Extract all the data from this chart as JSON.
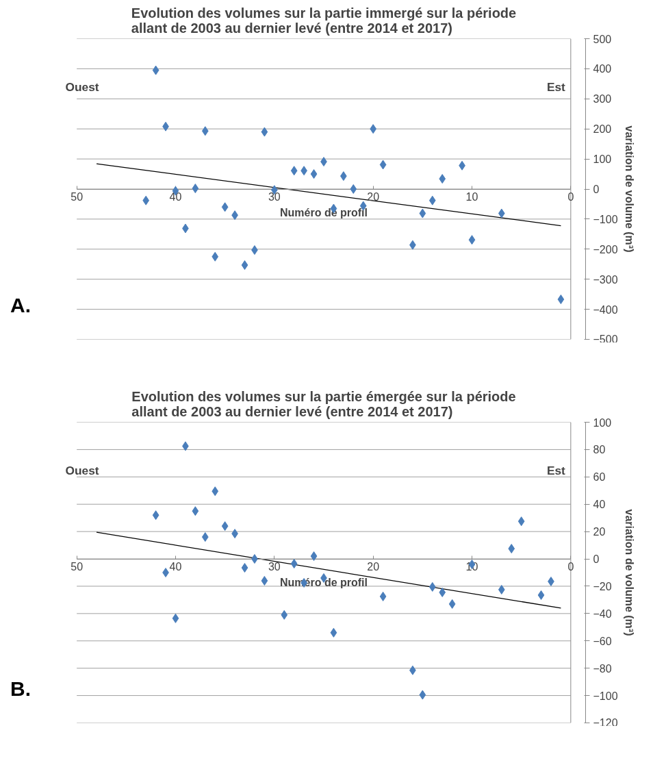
{
  "chart_data": [
    {
      "type": "scatter",
      "title": "Evolution des volumes sur la partie immergé sur la période\nallant de 2003 au dernier levé (entre 2014 et 2017)",
      "xlabel": "Numéro de profil",
      "ylabel": "variation de volume (m³)",
      "annotations": [
        "Ouest",
        "Est",
        "A."
      ],
      "xlim": [
        50,
        0
      ],
      "xticks": [
        50,
        40,
        30,
        20,
        10,
        0
      ],
      "ylim": [
        -500,
        500
      ],
      "yticks": [
        -500,
        -400,
        -300,
        -200,
        -100,
        0,
        100,
        200,
        300,
        400,
        500
      ],
      "grid": "y",
      "marker": "diamond",
      "series": [
        {
          "color": "#4a7ebb",
          "x": [
            42,
            41,
            37,
            31,
            28,
            27,
            26,
            25,
            43,
            40,
            38,
            30,
            35,
            34,
            39,
            36,
            33,
            32,
            20,
            19,
            23,
            22,
            24,
            21,
            13,
            11,
            14,
            15,
            16,
            10,
            7,
            1
          ],
          "values": [
            395,
            208,
            193,
            190,
            61,
            61,
            50,
            91,
            -38,
            -6,
            2,
            -3,
            -60,
            -87,
            -131,
            -225,
            -253,
            -203,
            200,
            81,
            43,
            0,
            -65,
            -56,
            34,
            78,
            -38,
            -81,
            -186,
            -169,
            -81,
            -367
          ]
        },
        {
          "type": "line",
          "color": "#000000",
          "marker": "none",
          "x": [
            48,
            1
          ],
          "values": [
            84,
            -122
          ]
        }
      ]
    },
    {
      "type": "scatter",
      "title": "Evolution des volumes sur la partie émergée sur la période\nallant de 2003 au dernier levé (entre 2014 et 2017)",
      "xlabel": "Numéro de profil",
      "ylabel": "variation de volume (m³)",
      "annotations": [
        "Ouest",
        "Est",
        "B."
      ],
      "xlim": [
        50,
        0
      ],
      "xticks": [
        50,
        40,
        30,
        20,
        10,
        0
      ],
      "ylim": [
        -120,
        100
      ],
      "yticks": [
        -120,
        -100,
        -80,
        -60,
        -40,
        -20,
        0,
        20,
        40,
        60,
        80,
        100
      ],
      "grid": "y",
      "marker": "diamond",
      "series": [
        {
          "color": "#4a7ebb",
          "x": [
            39,
            42,
            38,
            36,
            37,
            35,
            34,
            41,
            40,
            33,
            32,
            31,
            29,
            28,
            27,
            26,
            25,
            24,
            19,
            16,
            15,
            14,
            13,
            12,
            10,
            7,
            6,
            5,
            3,
            2
          ],
          "values": [
            82.5,
            32,
            35,
            49.5,
            16,
            24,
            18.5,
            -10,
            -43.5,
            -6.5,
            0,
            -16,
            -41,
            -3.5,
            -17.5,
            2,
            -14,
            -54,
            -27.5,
            -81.5,
            -99.5,
            -20.5,
            -24.5,
            -33,
            -4,
            -22.5,
            7.5,
            27.5,
            -26.5,
            -16.5
          ]
        },
        {
          "type": "line",
          "color": "#000000",
          "marker": "none",
          "x": [
            48,
            1
          ],
          "values": [
            19.5,
            -36
          ]
        }
      ]
    }
  ]
}
